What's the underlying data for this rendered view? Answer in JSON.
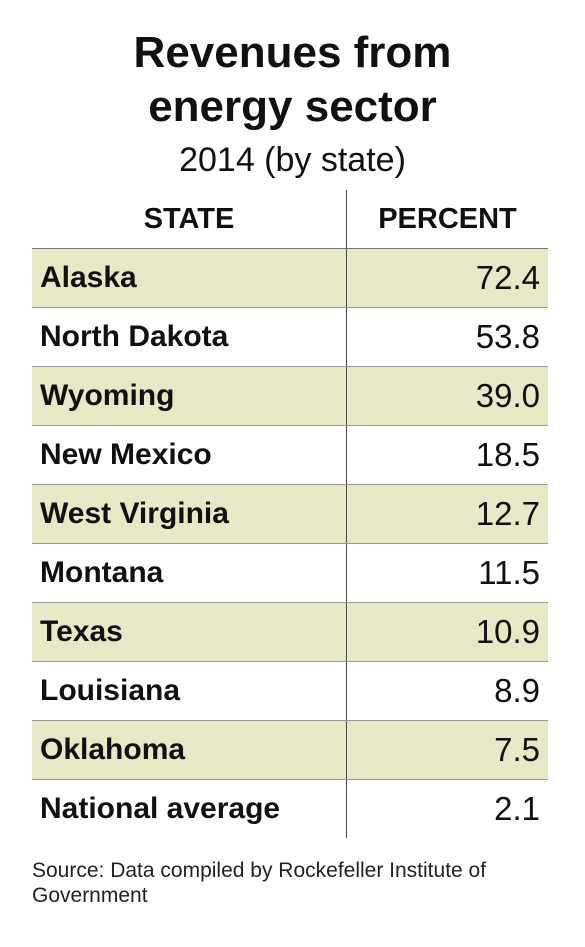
{
  "header": {
    "title": "Revenues from energy sector",
    "subtitle": "2014 (by state)"
  },
  "table": {
    "columns": [
      "STATE",
      "PERCENT"
    ],
    "rows": [
      [
        "Alaska",
        "72.4"
      ],
      [
        "North Dakota",
        "53.8"
      ],
      [
        "Wyoming",
        "39.0"
      ],
      [
        "New Mexico",
        "18.5"
      ],
      [
        "West Virginia",
        "12.7"
      ],
      [
        "Montana",
        "11.5"
      ],
      [
        "Texas",
        "10.9"
      ],
      [
        "Louisiana",
        "8.9"
      ],
      [
        "Oklahoma",
        "7.5"
      ],
      [
        "National average",
        "2.1"
      ]
    ]
  },
  "footer": {
    "source": "Source: Data compiled by Rockefeller Institute of Government"
  }
}
